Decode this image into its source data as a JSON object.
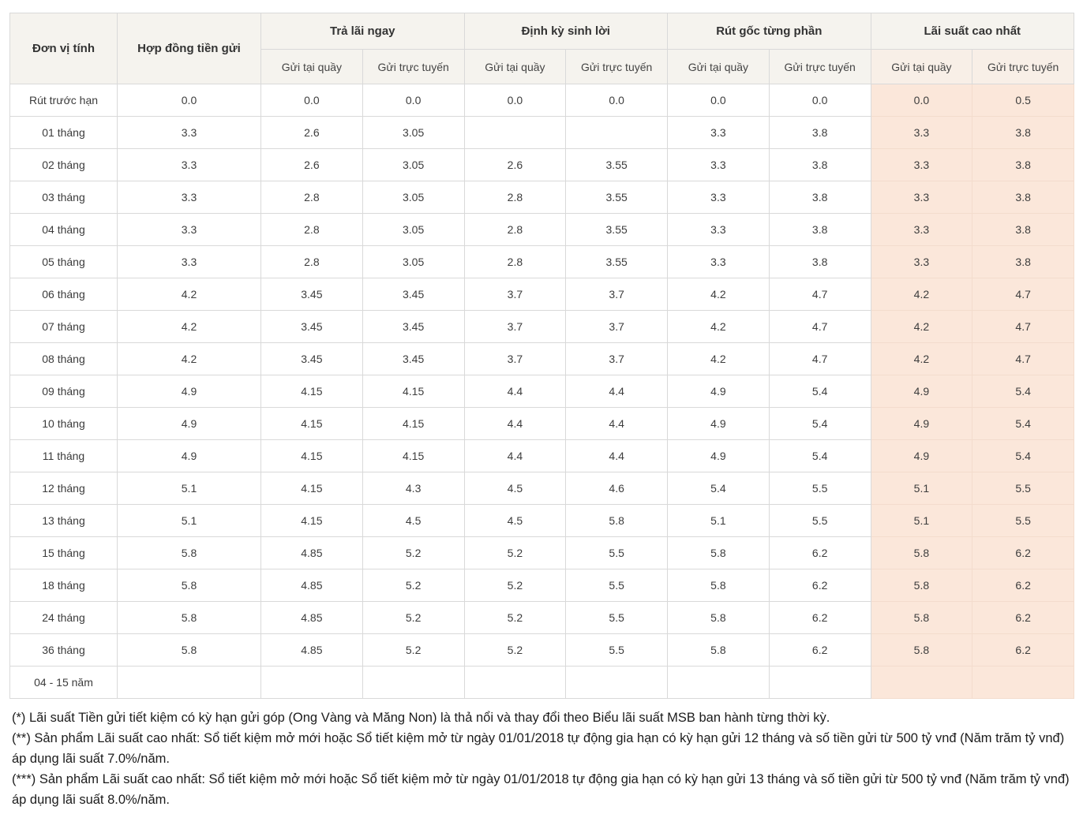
{
  "chart_data": {
    "type": "table",
    "corner_header": "Đơn vị tính",
    "contract_header": "Hợp đồng tiền gửi",
    "column_groups": [
      {
        "label": "Trả lãi ngay",
        "subcolumns": [
          "Gửi tại quầy",
          "Gửi trực tuyến"
        ],
        "highlight": false
      },
      {
        "label": "Định kỳ sinh lời",
        "subcolumns": [
          "Gửi tại quầy",
          "Gửi trực tuyến"
        ],
        "highlight": false
      },
      {
        "label": "Rút gốc từng phần",
        "subcolumns": [
          "Gửi tại quầy",
          "Gửi trực tuyến"
        ],
        "highlight": false
      },
      {
        "label": "Lãi suất cao nhất",
        "subcolumns": [
          "Gửi tại quầy",
          "Gửi trực tuyến"
        ],
        "highlight": true
      }
    ],
    "rows": [
      {
        "label": "Rút trước hạn",
        "values": [
          "0.0",
          "0.0",
          "0.0",
          "0.0",
          "0.0",
          "0.0",
          "0.0",
          "0.0",
          "0.5"
        ]
      },
      {
        "label": "01 tháng",
        "values": [
          "3.3",
          "2.6",
          "3.05",
          "",
          "",
          "3.3",
          "3.8",
          "3.3",
          "3.8"
        ]
      },
      {
        "label": "02 tháng",
        "values": [
          "3.3",
          "2.6",
          "3.05",
          "2.6",
          "3.55",
          "3.3",
          "3.8",
          "3.3",
          "3.8"
        ]
      },
      {
        "label": "03 tháng",
        "values": [
          "3.3",
          "2.8",
          "3.05",
          "2.8",
          "3.55",
          "3.3",
          "3.8",
          "3.3",
          "3.8"
        ]
      },
      {
        "label": "04 tháng",
        "values": [
          "3.3",
          "2.8",
          "3.05",
          "2.8",
          "3.55",
          "3.3",
          "3.8",
          "3.3",
          "3.8"
        ]
      },
      {
        "label": "05 tháng",
        "values": [
          "3.3",
          "2.8",
          "3.05",
          "2.8",
          "3.55",
          "3.3",
          "3.8",
          "3.3",
          "3.8"
        ]
      },
      {
        "label": "06 tháng",
        "values": [
          "4.2",
          "3.45",
          "3.45",
          "3.7",
          "3.7",
          "4.2",
          "4.7",
          "4.2",
          "4.7"
        ]
      },
      {
        "label": "07 tháng",
        "values": [
          "4.2",
          "3.45",
          "3.45",
          "3.7",
          "3.7",
          "4.2",
          "4.7",
          "4.2",
          "4.7"
        ]
      },
      {
        "label": "08 tháng",
        "values": [
          "4.2",
          "3.45",
          "3.45",
          "3.7",
          "3.7",
          "4.2",
          "4.7",
          "4.2",
          "4.7"
        ]
      },
      {
        "label": "09 tháng",
        "values": [
          "4.9",
          "4.15",
          "4.15",
          "4.4",
          "4.4",
          "4.9",
          "5.4",
          "4.9",
          "5.4"
        ]
      },
      {
        "label": "10 tháng",
        "values": [
          "4.9",
          "4.15",
          "4.15",
          "4.4",
          "4.4",
          "4.9",
          "5.4",
          "4.9",
          "5.4"
        ]
      },
      {
        "label": "11 tháng",
        "values": [
          "4.9",
          "4.15",
          "4.15",
          "4.4",
          "4.4",
          "4.9",
          "5.4",
          "4.9",
          "5.4"
        ]
      },
      {
        "label": "12 tháng",
        "values": [
          "5.1",
          "4.15",
          "4.3",
          "4.5",
          "4.6",
          "5.4",
          "5.5",
          "5.1",
          "5.5"
        ]
      },
      {
        "label": "13 tháng",
        "values": [
          "5.1",
          "4.15",
          "4.5",
          "4.5",
          "5.8",
          "5.1",
          "5.5",
          "5.1",
          "5.5"
        ]
      },
      {
        "label": "15 tháng",
        "values": [
          "5.8",
          "4.85",
          "5.2",
          "5.2",
          "5.5",
          "5.8",
          "6.2",
          "5.8",
          "6.2"
        ]
      },
      {
        "label": "18 tháng",
        "values": [
          "5.8",
          "4.85",
          "5.2",
          "5.2",
          "5.5",
          "5.8",
          "6.2",
          "5.8",
          "6.2"
        ]
      },
      {
        "label": "24 tháng",
        "values": [
          "5.8",
          "4.85",
          "5.2",
          "5.2",
          "5.5",
          "5.8",
          "6.2",
          "5.8",
          "6.2"
        ]
      },
      {
        "label": "36 tháng",
        "values": [
          "5.8",
          "4.85",
          "5.2",
          "5.2",
          "5.5",
          "5.8",
          "6.2",
          "5.8",
          "6.2"
        ]
      },
      {
        "label": "04 - 15 năm",
        "values": [
          "",
          "",
          "",
          "",
          "",
          "",
          "",
          "",
          ""
        ]
      }
    ]
  },
  "footnotes": [
    "(*) Lãi suất Tiền gửi tiết kiệm có kỳ hạn gửi góp (Ong Vàng và Măng Non) là thả nổi và thay đổi theo Biểu lãi suất MSB ban hành từng thời kỳ.",
    "(**) Sản phẩm Lãi suất cao nhất: Sổ tiết kiệm mở mới hoặc Sổ tiết kiệm mở từ ngày 01/01/2018 tự động gia hạn có kỳ hạn gửi 12 tháng và số tiền gửi từ 500 tỷ vnđ (Năm trăm tỷ vnđ) áp dụng lãi suất 7.0%/năm.",
    "(***) Sản phẩm Lãi suất cao nhất: Sổ tiết kiệm mở mới hoặc Sổ tiết kiệm mở từ ngày 01/01/2018 tự động gia hạn có kỳ hạn gửi 13 tháng và số tiền gửi từ 500 tỷ vnđ (Năm trăm tỷ vnđ) áp dụng lãi suất 8.0%/năm."
  ],
  "colors": {
    "header_bg": "#f5f3ee",
    "highlight_header_bg": "#f8efe7",
    "highlight_bg": "#fbe7da",
    "border": "#d9d9d9",
    "highlight_border": "#f3dccd",
    "text": "#3b3b3b"
  }
}
